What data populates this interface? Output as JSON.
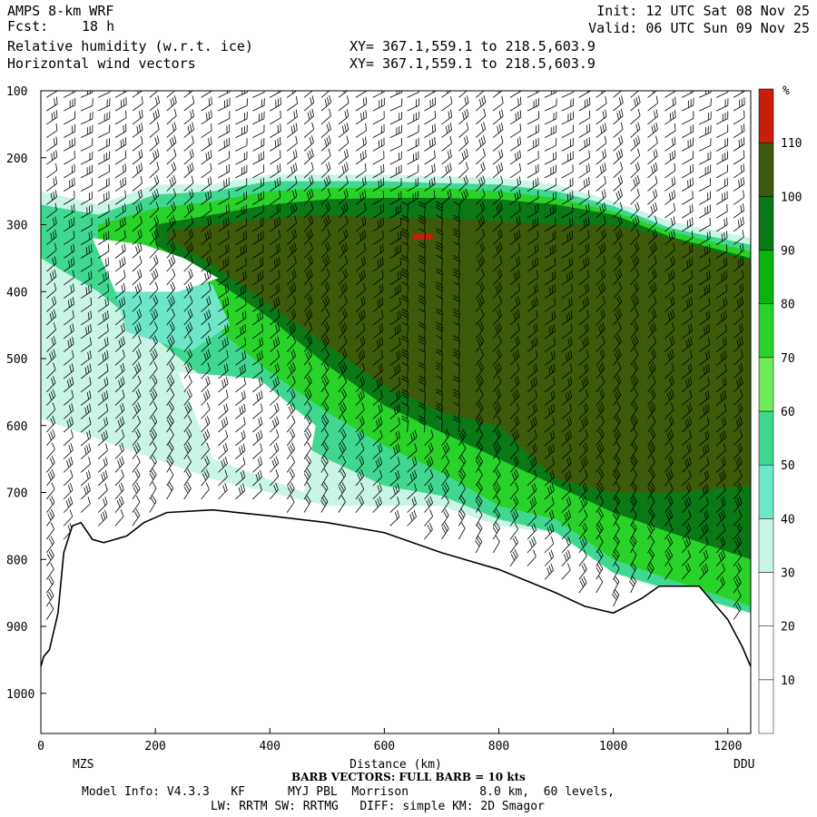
{
  "header": {
    "model": "AMPS 8-km WRF",
    "forecast_label": "Fcst:",
    "forecast_hours": "18 h",
    "field1": "Relative humidity (w.r.t. ice)",
    "field2": "Horizontal wind vectors",
    "xy1": "XY= 367.1,559.1 to 218.5,603.9",
    "xy2": "XY= 367.1,559.1 to 218.5,603.9",
    "init": "Init: 12 UTC Sat 08 Nov 25",
    "valid": "Valid: 06 UTC Sun 09 Nov 25"
  },
  "footer": {
    "barb_note": "BARB VECTORS:  FULL BARB = 10 kts",
    "model_info": "Model Info: V4.3.3   KF      MYJ PBL  Morrison          8.0 km,  60 levels,",
    "physics": "LW: RRTM SW: RRTMG   DIFF: simple KM: 2D Smagor"
  },
  "colors": {
    "c0_10": "#ffffff",
    "c10_20": "#ffffff",
    "c20_30": "#ffffff",
    "c30_40": "#c8f5e6",
    "c40_50": "#6ee6c8",
    "c50_60": "#40d890",
    "c60_70": "#6eec5a",
    "c70_80": "#28d228",
    "c80_90": "#0ab40a",
    "c90_100": "#0a7814",
    "c100_110": "#3c5a0a",
    "c110_plus": "#c81e0a",
    "terrain": "#ffffff",
    "terrain_edge": "#000000"
  },
  "chart_data": {
    "type": "heatmap",
    "title": "Relative humidity (w.r.t. ice)",
    "xlabel": "Distance (km)",
    "ylabel": "",
    "xlim": [
      0,
      1240
    ],
    "ylim": [
      1060,
      100
    ],
    "x_ticks": [
      0,
      200,
      400,
      600,
      800,
      1000,
      1200
    ],
    "y_ticks": [
      100,
      200,
      300,
      400,
      500,
      600,
      700,
      800,
      900,
      1000
    ],
    "x_endpoints": [
      "MZS",
      "DDU"
    ],
    "colorbar": {
      "unit": "%",
      "levels": [
        0,
        10,
        20,
        30,
        40,
        50,
        60,
        70,
        80,
        90,
        100,
        110,
        120
      ],
      "labels": [
        10,
        20,
        30,
        40,
        50,
        60,
        70,
        80,
        90,
        100,
        110
      ]
    },
    "terrain_surface": [
      [
        0,
        960
      ],
      [
        5,
        945
      ],
      [
        15,
        935
      ],
      [
        30,
        880
      ],
      [
        40,
        790
      ],
      [
        55,
        750
      ],
      [
        70,
        745
      ],
      [
        90,
        770
      ],
      [
        110,
        775
      ],
      [
        150,
        765
      ],
      [
        180,
        745
      ],
      [
        220,
        730
      ],
      [
        300,
        726
      ],
      [
        400,
        735
      ],
      [
        500,
        745
      ],
      [
        600,
        760
      ],
      [
        700,
        790
      ],
      [
        800,
        815
      ],
      [
        900,
        850
      ],
      [
        950,
        870
      ],
      [
        1000,
        880
      ],
      [
        1050,
        858
      ],
      [
        1080,
        840
      ],
      [
        1150,
        840
      ],
      [
        1200,
        890
      ],
      [
        1225,
        930
      ],
      [
        1240,
        960
      ]
    ],
    "moist_band": [
      {
        "rh": 35,
        "upper": [
          [
            0,
            250
          ],
          [
            100,
            270
          ],
          [
            200,
            240
          ],
          [
            300,
            240
          ],
          [
            400,
            225
          ],
          [
            500,
            225
          ],
          [
            600,
            225
          ],
          [
            700,
            228
          ],
          [
            800,
            230
          ],
          [
            900,
            240
          ],
          [
            1000,
            265
          ],
          [
            1100,
            295
          ],
          [
            1240,
            320
          ]
        ],
        "lower": [
          [
            0,
            590
          ],
          [
            100,
            620
          ],
          [
            200,
            650
          ],
          [
            300,
            680
          ],
          [
            400,
            700
          ],
          [
            500,
            720
          ],
          [
            600,
            720
          ],
          [
            700,
            720
          ],
          [
            800,
            750
          ],
          [
            900,
            760
          ],
          [
            1000,
            820
          ],
          [
            1100,
            850
          ],
          [
            1240,
            880
          ]
        ]
      },
      {
        "rh": 55,
        "upper": [
          [
            0,
            270
          ],
          [
            100,
            285
          ],
          [
            200,
            255
          ],
          [
            300,
            250
          ],
          [
            400,
            235
          ],
          [
            500,
            235
          ],
          [
            600,
            235
          ],
          [
            700,
            238
          ],
          [
            800,
            240
          ],
          [
            900,
            250
          ],
          [
            1000,
            272
          ],
          [
            1100,
            305
          ],
          [
            1240,
            330
          ]
        ],
        "lower": [
          [
            0,
            350
          ],
          [
            100,
            400
          ],
          [
            200,
            470
          ],
          [
            300,
            540
          ],
          [
            400,
            600
          ],
          [
            500,
            650
          ],
          [
            600,
            690
          ],
          [
            700,
            705
          ],
          [
            800,
            740
          ],
          [
            900,
            760
          ],
          [
            1000,
            820
          ],
          [
            1100,
            845
          ],
          [
            1240,
            880
          ]
        ]
      },
      {
        "rh": 75,
        "upper": [
          [
            100,
            300
          ],
          [
            200,
            275
          ],
          [
            300,
            265
          ],
          [
            400,
            250
          ],
          [
            500,
            245
          ],
          [
            600,
            245
          ],
          [
            700,
            245
          ],
          [
            800,
            250
          ],
          [
            900,
            260
          ],
          [
            1000,
            280
          ],
          [
            1100,
            310
          ],
          [
            1240,
            340
          ]
        ],
        "lower": [
          [
            100,
            320
          ],
          [
            200,
            380
          ],
          [
            300,
            450
          ],
          [
            400,
            520
          ],
          [
            500,
            580
          ],
          [
            600,
            630
          ],
          [
            700,
            670
          ],
          [
            800,
            720
          ],
          [
            900,
            740
          ],
          [
            1000,
            800
          ],
          [
            1100,
            830
          ],
          [
            1240,
            870
          ]
        ]
      },
      {
        "rh": 95,
        "upper": [
          [
            200,
            300
          ],
          [
            300,
            285
          ],
          [
            400,
            270
          ],
          [
            500,
            262
          ],
          [
            600,
            260
          ],
          [
            700,
            260
          ],
          [
            800,
            262
          ],
          [
            900,
            270
          ],
          [
            1000,
            285
          ],
          [
            1100,
            318
          ],
          [
            1240,
            350
          ]
        ],
        "lower": [
          [
            200,
            330
          ],
          [
            300,
            380
          ],
          [
            400,
            440
          ],
          [
            500,
            510
          ],
          [
            600,
            570
          ],
          [
            700,
            610
          ],
          [
            800,
            650
          ],
          [
            900,
            690
          ],
          [
            1000,
            730
          ],
          [
            1100,
            760
          ],
          [
            1240,
            800
          ]
        ]
      },
      {
        "rh": 105,
        "upper": [
          [
            220,
            310
          ],
          [
            300,
            300
          ],
          [
            400,
            290
          ],
          [
            500,
            285
          ],
          [
            600,
            290
          ],
          [
            700,
            290
          ],
          [
            800,
            295
          ],
          [
            900,
            300
          ],
          [
            1000,
            300
          ],
          [
            1100,
            320
          ],
          [
            1240,
            355
          ]
        ],
        "lower": [
          [
            220,
            320
          ],
          [
            300,
            360
          ],
          [
            400,
            420
          ],
          [
            500,
            480
          ],
          [
            600,
            540
          ],
          [
            700,
            580
          ],
          [
            800,
            600
          ],
          [
            900,
            680
          ],
          [
            1000,
            700
          ],
          [
            1100,
            700
          ],
          [
            1240,
            690
          ]
        ]
      }
    ],
    "dry_patches": [
      {
        "rh": 45,
        "points": [
          [
            130,
            400
          ],
          [
            220,
            360
          ],
          [
            300,
            390
          ],
          [
            330,
            450
          ],
          [
            260,
            490
          ],
          [
            150,
            460
          ]
        ]
      },
      {
        "rh": 15,
        "points": [
          [
            90,
            320
          ],
          [
            180,
            330
          ],
          [
            250,
            350
          ],
          [
            310,
            380
          ],
          [
            240,
            400
          ],
          [
            130,
            400
          ]
        ]
      },
      {
        "rh": 15,
        "points": [
          [
            240,
            520
          ],
          [
            380,
            530
          ],
          [
            480,
            600
          ],
          [
            460,
            700
          ],
          [
            300,
            650
          ]
        ]
      }
    ],
    "max_marker": {
      "rh": 115,
      "x": 667,
      "p": 318
    },
    "wind_columns_x": [
      10,
      40,
      70,
      100,
      130,
      160,
      190,
      220,
      250,
      280,
      310,
      340,
      370,
      400,
      430,
      460,
      490,
      520,
      550,
      580,
      610,
      640,
      670,
      700,
      730,
      760,
      790,
      820,
      850,
      880,
      910,
      940,
      970,
      1000,
      1030,
      1060,
      1090,
      1120,
      1150,
      1180,
      1210,
      1240
    ],
    "wind_levels_p": [
      110,
      130,
      150,
      170,
      190,
      210,
      230,
      250,
      270,
      290,
      310,
      330,
      350,
      370,
      390,
      410,
      430,
      450,
      470,
      490,
      510,
      530,
      550,
      570,
      590,
      610,
      630,
      650,
      670,
      690,
      710,
      730,
      750,
      770,
      790,
      810,
      830,
      850,
      870,
      890
    ]
  }
}
